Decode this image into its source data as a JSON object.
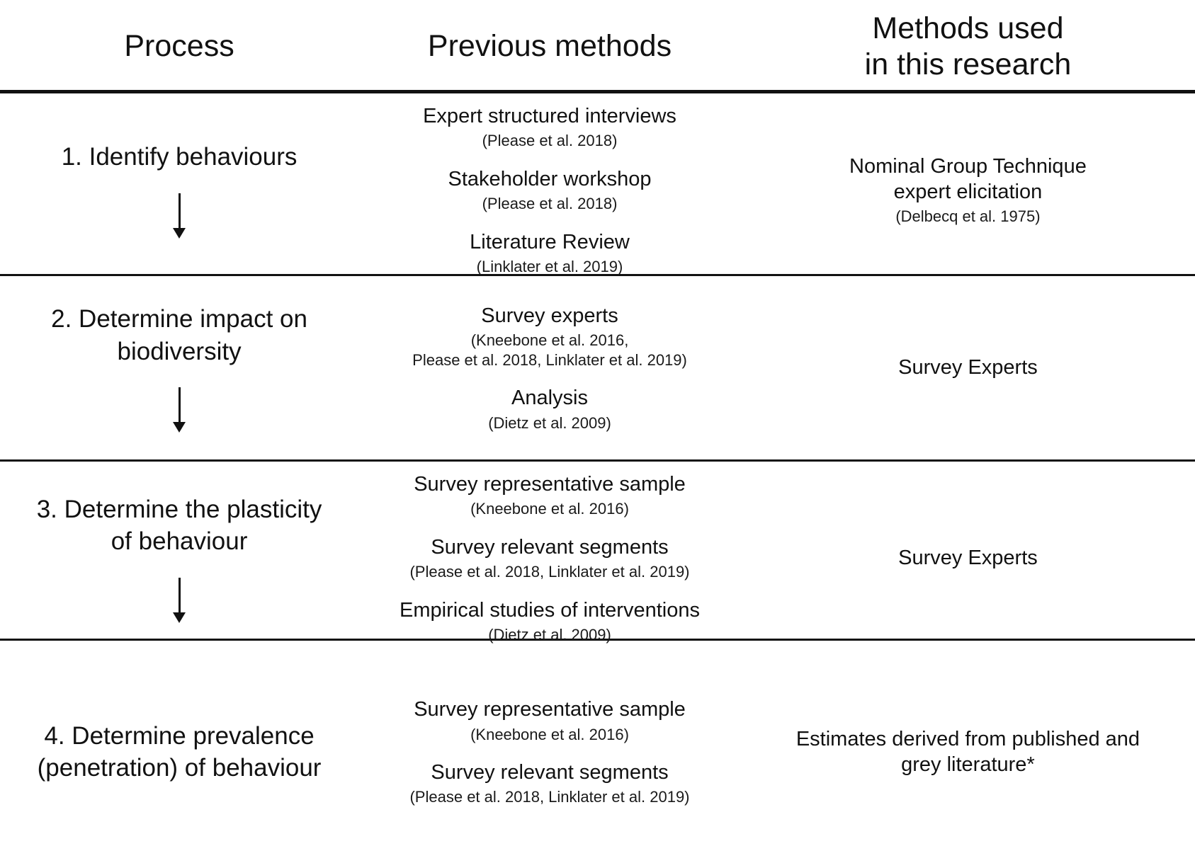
{
  "table": {
    "headers": {
      "process": "Process",
      "previous": "Previous methods",
      "current": "Methods used\nin this research"
    },
    "rows": [
      {
        "process": "1. Identify behaviours",
        "previous": [
          {
            "method": "Expert structured interviews",
            "citation": "(Please et al. 2018)"
          },
          {
            "method": "Stakeholder workshop",
            "citation": "(Please et al. 2018)"
          },
          {
            "method": "Literature Review",
            "citation": "(Linklater et al. 2019)"
          }
        ],
        "current": {
          "method": "Nominal Group Technique\nexpert elicitation",
          "citation": "(Delbecq et al. 1975)"
        }
      },
      {
        "process": "2. Determine impact on\nbiodiversity",
        "previous": [
          {
            "method": "Survey experts",
            "citation": "(Kneebone et al. 2016,\nPlease et al. 2018, Linklater et al. 2019)"
          },
          {
            "method": "Analysis",
            "citation": "(Dietz et al. 2009)"
          }
        ],
        "current": {
          "method": "Survey Experts"
        }
      },
      {
        "process": "3. Determine the plasticity\nof behaviour",
        "previous": [
          {
            "method": "Survey representative sample",
            "citation": "(Kneebone et al. 2016)"
          },
          {
            "method": "Survey relevant segments",
            "citation": "(Please et al. 2018, Linklater et al. 2019)"
          },
          {
            "method": "Empirical studies of interventions",
            "citation": "(Dietz et al. 2009)"
          }
        ],
        "current": {
          "method": "Survey Experts"
        }
      },
      {
        "process": "4. Determine prevalence\n(penetration) of behaviour",
        "previous": [
          {
            "method": "Survey representative sample",
            "citation": "(Kneebone et al. 2016)"
          },
          {
            "method": "Survey relevant segments",
            "citation": "(Please et al. 2018, Linklater et al. 2019)"
          }
        ],
        "current": {
          "method": "Estimates derived from published and\ngrey literature*"
        }
      }
    ]
  }
}
